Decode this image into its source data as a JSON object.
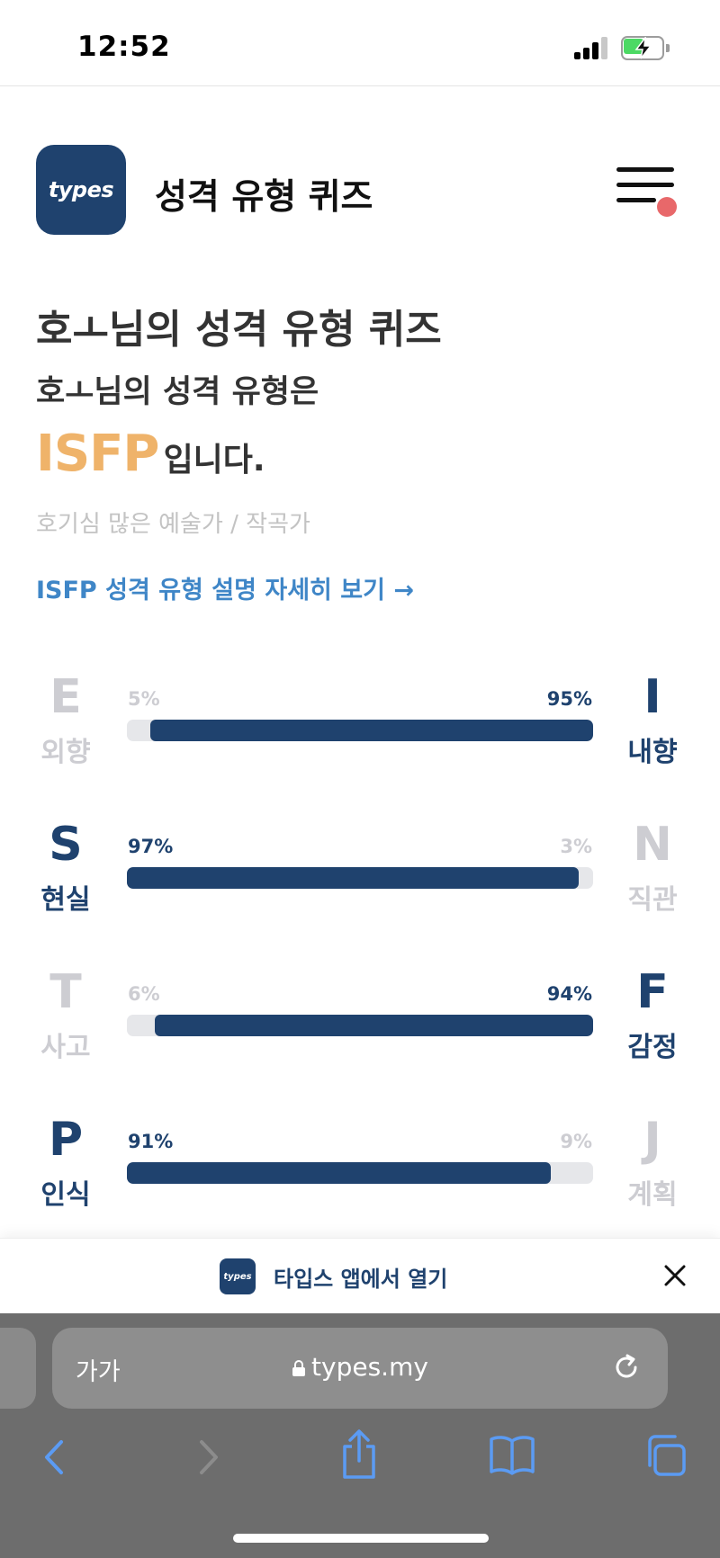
{
  "status_bar": {
    "time": "12:52",
    "battery_level": 0.45,
    "signal_bars_active": 3
  },
  "header": {
    "logo_text": "types",
    "site_title": "성격 유형 퀴즈",
    "menu_badge_color": "#e8686a"
  },
  "result": {
    "quiz_title": "호ㅗ님의 성격 유형 퀴즈",
    "result_line": "호ㅗ님의 성격 유형은",
    "type_code": "ISFP",
    "type_suffix": "입니다.",
    "type_description": "호기심 많은 예술가 / 작곡가",
    "detail_link": "ISFP 성격 유형 설명 자세히 보기 →"
  },
  "traits": [
    {
      "left_letter": "E",
      "left_label": "외향",
      "left_pct": "5%",
      "right_letter": "I",
      "right_label": "내향",
      "right_pct": "95%",
      "dominant": "right",
      "fill_fraction": 0.95
    },
    {
      "left_letter": "S",
      "left_label": "현실",
      "left_pct": "97%",
      "right_letter": "N",
      "right_label": "직관",
      "right_pct": "3%",
      "dominant": "left",
      "fill_fraction": 0.97
    },
    {
      "left_letter": "T",
      "left_label": "사고",
      "left_pct": "6%",
      "right_letter": "F",
      "right_label": "감정",
      "right_pct": "94%",
      "dominant": "right",
      "fill_fraction": 0.94
    },
    {
      "left_letter": "P",
      "left_label": "인식",
      "left_pct": "91%",
      "right_letter": "J",
      "right_label": "계획",
      "right_pct": "9%",
      "dominant": "left",
      "fill_fraction": 0.91
    }
  ],
  "app_banner": {
    "logo_text": "types",
    "label": "타입스 앱에서 열기"
  },
  "browser": {
    "text_size_label": "가가",
    "url": "types.my"
  },
  "colors": {
    "accent_navy": "#1f426e",
    "type_orange": "#efb36a",
    "link_blue": "#3f86c7"
  }
}
